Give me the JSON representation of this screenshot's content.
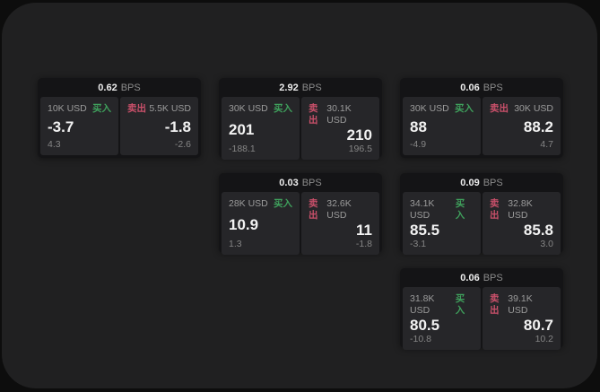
{
  "labels": {
    "bps_unit": "BPS",
    "buy": "买入",
    "sell": "卖出"
  },
  "colors": {
    "page_bg": "#0d0d0d",
    "container_bg": "#202021",
    "card_bg": "#141416",
    "panel_bg": "#262629",
    "buy_green": "#3fa05c",
    "sell_red": "#c9506a",
    "price_text": "#f2f2f2",
    "muted_text": "#9b9b9b"
  },
  "cards": [
    {
      "bps": "0.62",
      "buy": {
        "amount": "10K USD",
        "price": "-3.7",
        "delta": "4.3"
      },
      "sell": {
        "amount": "5.5K USD",
        "price": "-1.8",
        "delta": "-2.6"
      }
    },
    {
      "bps": "2.92",
      "buy": {
        "amount": "30K USD",
        "price": "201",
        "delta": "-188.1"
      },
      "sell": {
        "amount": "30.1K USD",
        "price": "210",
        "delta": "196.5"
      }
    },
    {
      "bps": "0.06",
      "buy": {
        "amount": "30K USD",
        "price": "88",
        "delta": "-4.9"
      },
      "sell": {
        "amount": "30K USD",
        "price": "88.2",
        "delta": "4.7"
      }
    },
    {
      "bps": "0.03",
      "buy": {
        "amount": "28K USD",
        "price": "10.9",
        "delta": "1.3"
      },
      "sell": {
        "amount": "32.6K USD",
        "price": "11",
        "delta": "-1.8"
      }
    },
    {
      "bps": "0.09",
      "buy": {
        "amount": "34.1K USD",
        "price": "85.5",
        "delta": "-3.1"
      },
      "sell": {
        "amount": "32.8K USD",
        "price": "85.8",
        "delta": "3.0"
      }
    },
    {
      "bps": "0.06",
      "buy": {
        "amount": "31.8K USD",
        "price": "80.5",
        "delta": "-10.8"
      },
      "sell": {
        "amount": "39.1K USD",
        "price": "80.7",
        "delta": "10.2"
      }
    }
  ]
}
